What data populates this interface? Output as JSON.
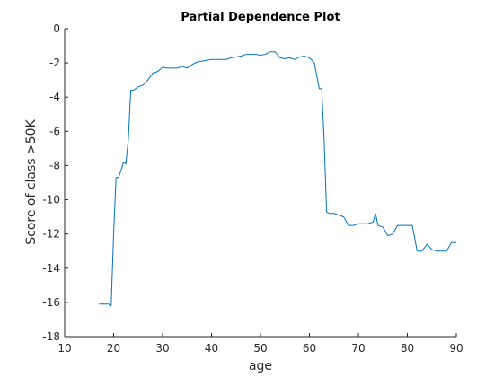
{
  "chart_data": {
    "type": "line",
    "title": "Partial Dependence Plot",
    "xlabel": "age",
    "ylabel": "Score of class >50K",
    "xlim": [
      10,
      90
    ],
    "ylim": [
      -18,
      0
    ],
    "xticks": [
      10,
      20,
      30,
      40,
      50,
      60,
      70,
      80,
      90
    ],
    "yticks": [
      0,
      -2,
      -4,
      -6,
      -8,
      -10,
      -12,
      -14,
      -16,
      -18
    ],
    "grid": false,
    "series": [
      {
        "color": "#0072bd",
        "x": [
          17,
          19,
          19.5,
          20,
          20.5,
          21,
          21.5,
          22,
          22.5,
          23,
          23.5,
          24,
          25,
          26,
          27,
          28,
          29,
          30,
          31,
          32,
          33,
          34,
          35,
          36,
          37,
          38,
          39,
          40,
          41,
          42,
          43,
          44,
          45,
          46,
          47,
          48,
          49,
          50,
          51,
          52,
          53,
          54,
          55,
          56,
          57,
          58,
          59,
          60,
          61,
          62,
          62.5,
          63,
          63.5,
          64,
          65,
          66,
          67,
          68,
          69,
          70,
          71,
          72,
          73,
          73.5,
          74,
          75,
          76,
          77,
          78,
          79,
          80,
          81,
          82,
          83,
          84,
          85,
          86,
          87,
          88,
          89,
          90
        ],
        "y": [
          -16.1,
          -16.1,
          -16.2,
          -12.0,
          -8.7,
          -8.7,
          -8.3,
          -7.8,
          -7.9,
          -6.5,
          -3.6,
          -3.6,
          -3.4,
          -3.3,
          -3.0,
          -2.6,
          -2.5,
          -2.25,
          -2.3,
          -2.3,
          -2.3,
          -2.2,
          -2.3,
          -2.1,
          -1.95,
          -1.9,
          -1.85,
          -1.8,
          -1.8,
          -1.8,
          -1.8,
          -1.7,
          -1.65,
          -1.6,
          -1.5,
          -1.5,
          -1.5,
          -1.55,
          -1.5,
          -1.35,
          -1.35,
          -1.7,
          -1.75,
          -1.7,
          -1.8,
          -1.65,
          -1.6,
          -1.7,
          -2.0,
          -3.5,
          -3.5,
          -6.5,
          -10.7,
          -10.8,
          -10.8,
          -10.9,
          -11.0,
          -11.5,
          -11.5,
          -11.4,
          -11.4,
          -11.4,
          -11.3,
          -10.8,
          -11.5,
          -11.6,
          -12.1,
          -12.0,
          -11.5,
          -11.5,
          -11.5,
          -11.5,
          -13.0,
          -13.0,
          -12.6,
          -12.9,
          -13.0,
          -13.0,
          -13.0,
          -12.5,
          -12.5
        ]
      }
    ]
  }
}
